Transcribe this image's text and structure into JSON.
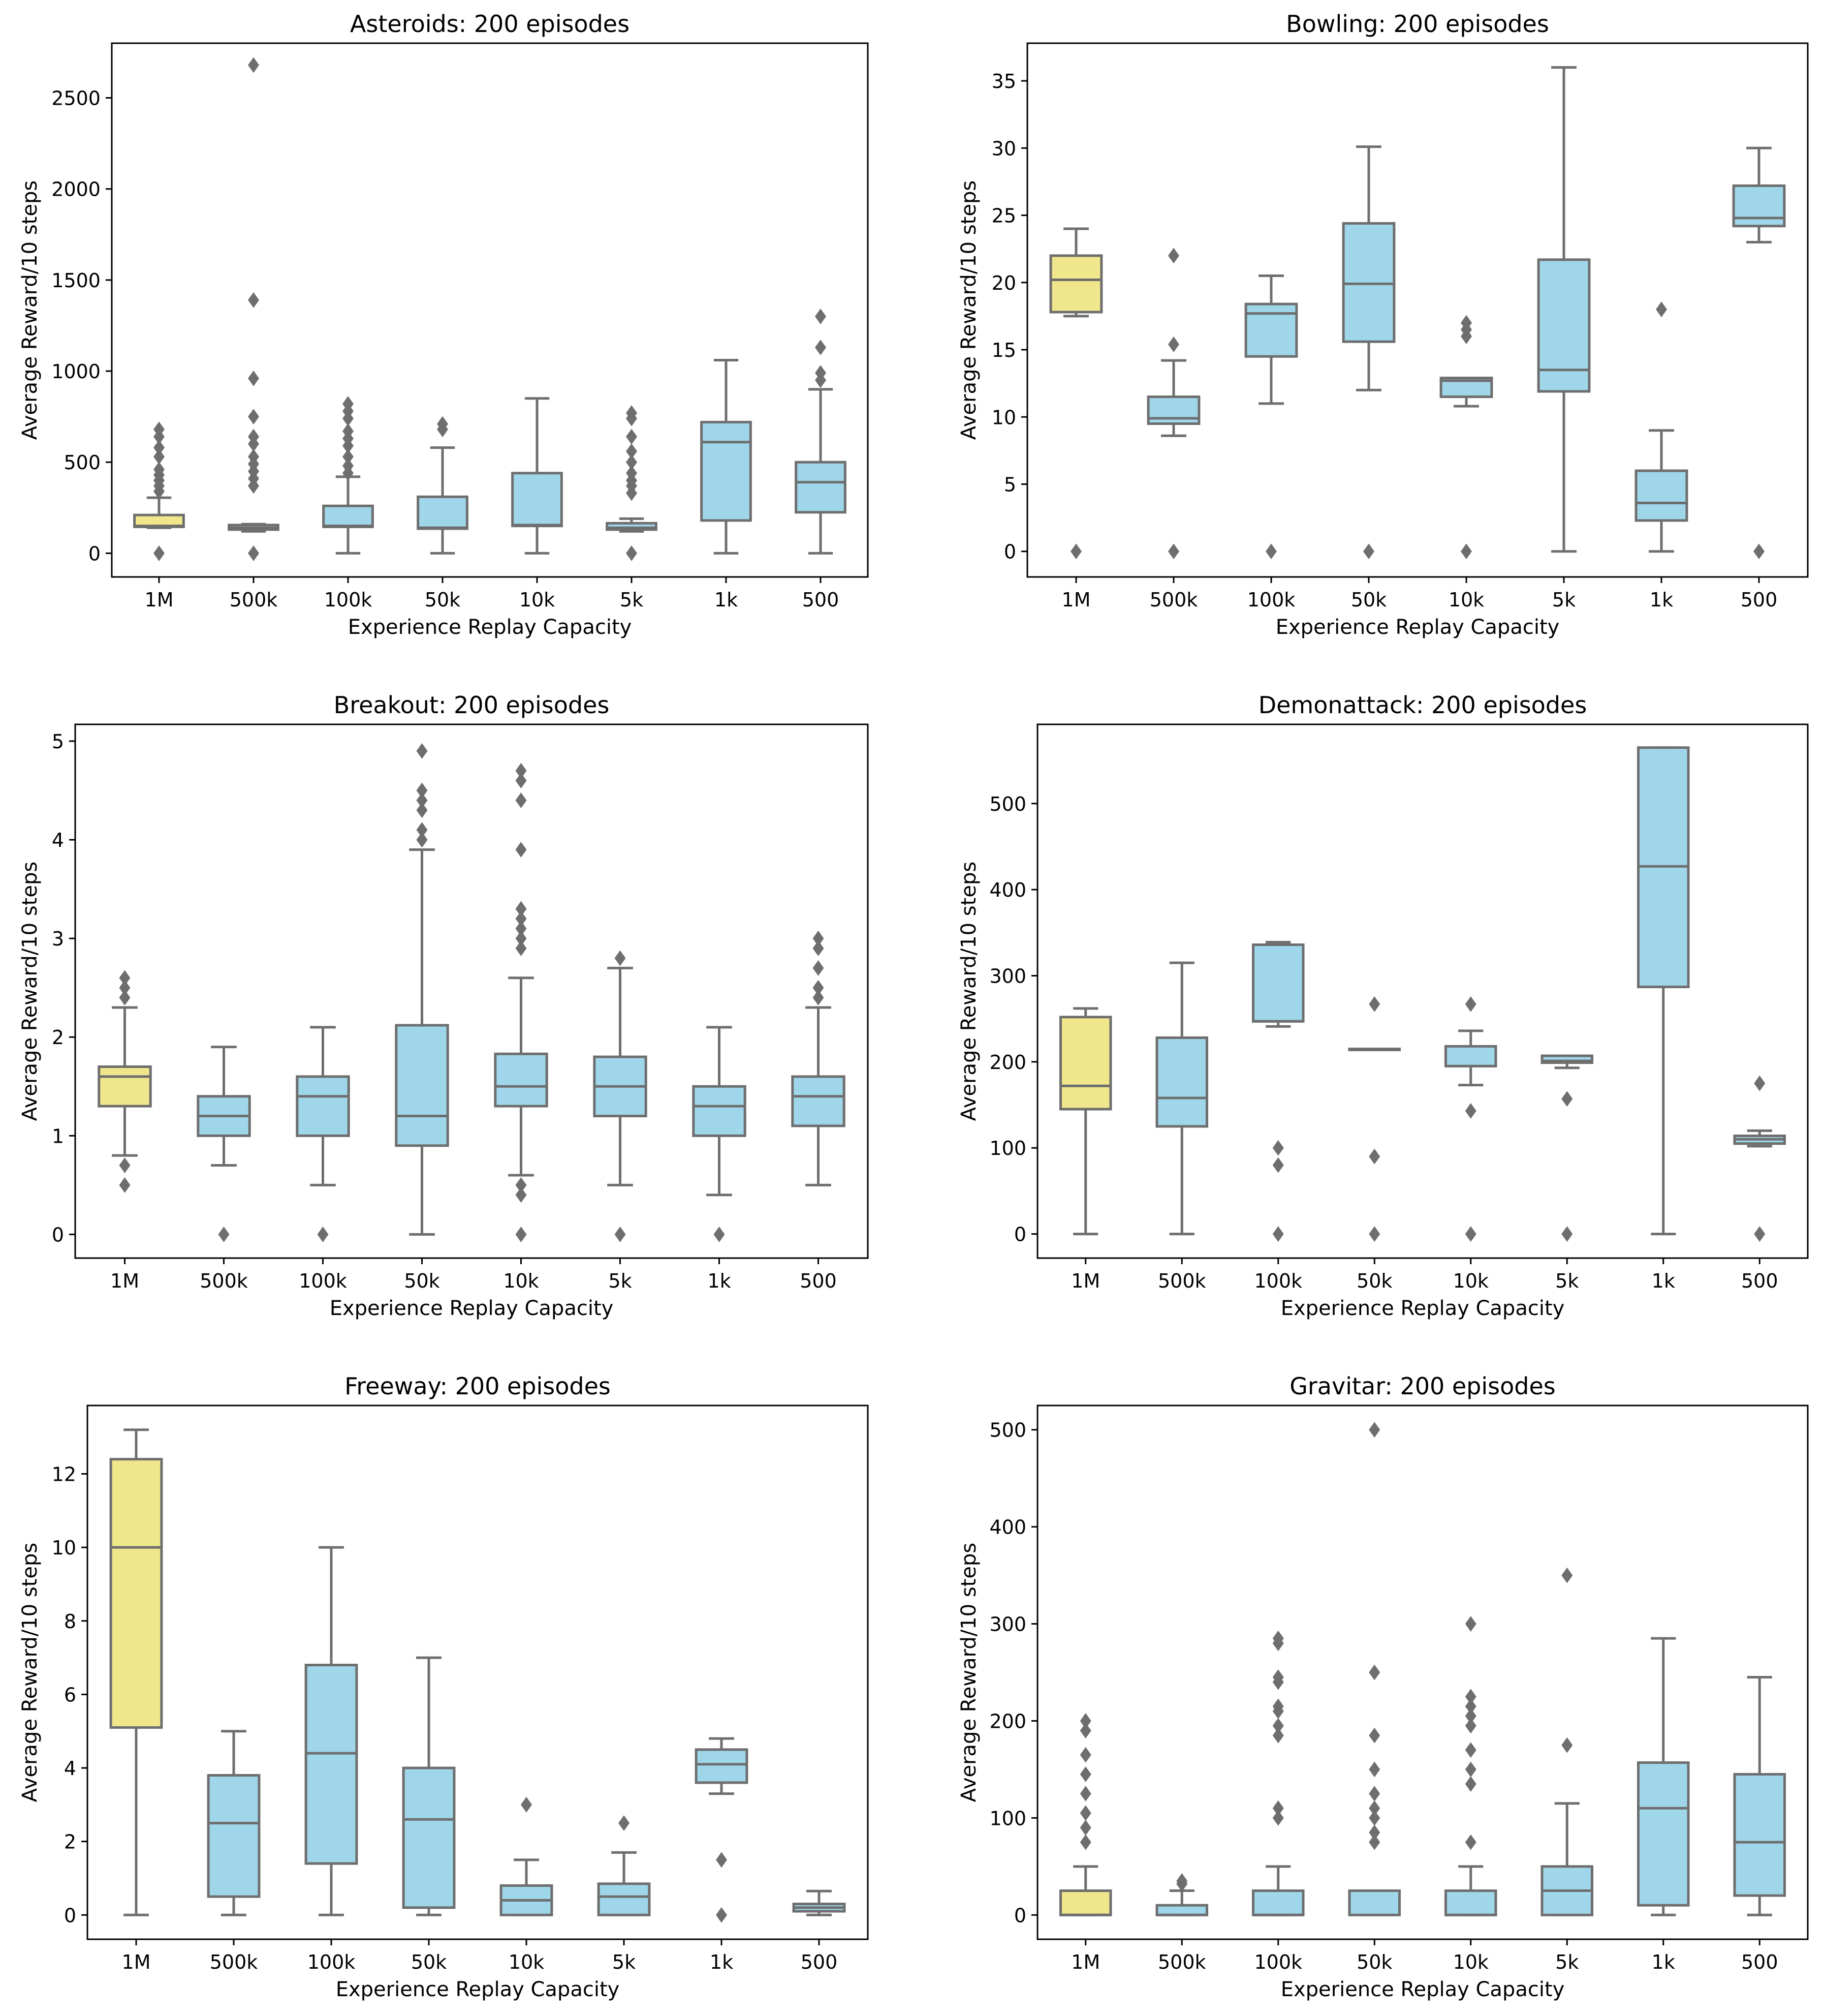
{
  "figure": {
    "colors": {
      "baseline": "#f0e68c",
      "variant": "#9fd6ea",
      "line": "#6e6e6e"
    }
  },
  "chart_data": [
    {
      "type": "box",
      "title": "Asteroids: 200 episodes",
      "xlabel": "Experience Replay Capacity",
      "ylabel": "Average Reward/10 steps",
      "categories": [
        "1M",
        "500k",
        "100k",
        "50k",
        "10k",
        "5k",
        "1k",
        "500"
      ],
      "ylim": [
        -130,
        2800
      ],
      "yticks": [
        0,
        500,
        1000,
        1500,
        2000,
        2500
      ],
      "boxes": [
        {
          "q1": 145,
          "median": 150,
          "q3": 210,
          "whislo": 140,
          "whishi": 305,
          "fliers": [
            0,
            340,
            370,
            400,
            430,
            460,
            530,
            580,
            640,
            680
          ]
        },
        {
          "q1": 130,
          "median": 140,
          "q3": 155,
          "whislo": 120,
          "whishi": 160,
          "fliers": [
            0,
            370,
            410,
            450,
            490,
            530,
            600,
            640,
            750,
            960,
            1390,
            2680
          ]
        },
        {
          "q1": 145,
          "median": 150,
          "q3": 260,
          "whislo": 0,
          "whishi": 420,
          "fliers": [
            440,
            480,
            530,
            590,
            630,
            670,
            740,
            780,
            820
          ]
        },
        {
          "q1": 135,
          "median": 140,
          "q3": 310,
          "whislo": 0,
          "whishi": 580,
          "fliers": [
            680,
            710
          ]
        },
        {
          "q1": 150,
          "median": 155,
          "q3": 440,
          "whislo": 0,
          "whishi": 850,
          "fliers": []
        },
        {
          "q1": 130,
          "median": 140,
          "q3": 165,
          "whislo": 120,
          "whishi": 190,
          "fliers": [
            0,
            330,
            370,
            400,
            440,
            500,
            560,
            640,
            740,
            770
          ]
        },
        {
          "q1": 180,
          "median": 610,
          "q3": 720,
          "whislo": 0,
          "whishi": 1060,
          "fliers": []
        },
        {
          "q1": 225,
          "median": 390,
          "q3": 500,
          "whislo": 0,
          "whishi": 900,
          "fliers": [
            950,
            990,
            1130,
            1300
          ]
        }
      ]
    },
    {
      "type": "box",
      "title": "Bowling: 200 episodes",
      "xlabel": "Experience Replay Capacity",
      "ylabel": "Average Reward/10 steps",
      "categories": [
        "1M",
        "500k",
        "100k",
        "50k",
        "10k",
        "5k",
        "1k",
        "500"
      ],
      "ylim": [
        -1.9,
        37.8
      ],
      "yticks": [
        0,
        5,
        10,
        15,
        20,
        25,
        30,
        35
      ],
      "boxes": [
        {
          "q1": 17.8,
          "median": 20.2,
          "q3": 22,
          "whislo": 17.5,
          "whishi": 24,
          "fliers": [
            0
          ]
        },
        {
          "q1": 9.5,
          "median": 9.9,
          "q3": 11.5,
          "whislo": 8.6,
          "whishi": 14.2,
          "fliers": [
            0,
            15.4,
            22
          ]
        },
        {
          "q1": 14.5,
          "median": 17.7,
          "q3": 18.4,
          "whislo": 11,
          "whishi": 20.5,
          "fliers": [
            0
          ]
        },
        {
          "q1": 15.6,
          "median": 19.9,
          "q3": 24.4,
          "whislo": 12,
          "whishi": 30.1,
          "fliers": [
            0
          ]
        },
        {
          "q1": 11.5,
          "median": 12.7,
          "q3": 12.9,
          "whislo": 10.8,
          "whishi": 12.9,
          "fliers": [
            0,
            16,
            16.5,
            17
          ]
        },
        {
          "q1": 11.9,
          "median": 13.5,
          "q3": 21.7,
          "whislo": 0,
          "whishi": 36,
          "fliers": []
        },
        {
          "q1": 2.3,
          "median": 3.6,
          "q3": 6,
          "whislo": 0,
          "whishi": 9,
          "fliers": [
            18
          ]
        },
        {
          "q1": 24.2,
          "median": 24.8,
          "q3": 27.2,
          "whislo": 23,
          "whishi": 30,
          "fliers": [
            0
          ]
        }
      ]
    },
    {
      "type": "box",
      "title": "Breakout: 200 episodes",
      "xlabel": "Experience Replay Capacity",
      "ylabel": "Average Reward/10 steps",
      "categories": [
        "1M",
        "500k",
        "100k",
        "50k",
        "10k",
        "5k",
        "1k",
        "500"
      ],
      "ylim": [
        -0.24,
        5.17
      ],
      "yticks": [
        0,
        1,
        2,
        3,
        4,
        5
      ],
      "boxes": [
        {
          "q1": 1.3,
          "median": 1.6,
          "q3": 1.7,
          "whislo": 0.8,
          "whishi": 2.3,
          "fliers": [
            0.5,
            0.7,
            2.4,
            2.5,
            2.6
          ]
        },
        {
          "q1": 1.0,
          "median": 1.2,
          "q3": 1.4,
          "whislo": 0.7,
          "whishi": 1.9,
          "fliers": [
            0
          ]
        },
        {
          "q1": 1.0,
          "median": 1.4,
          "q3": 1.6,
          "whislo": 0.5,
          "whishi": 2.1,
          "fliers": [
            0
          ]
        },
        {
          "q1": 0.9,
          "median": 1.2,
          "q3": 2.12,
          "whislo": 0,
          "whishi": 3.9,
          "fliers": [
            4.0,
            4.1,
            4.3,
            4.4,
            4.5,
            4.9
          ]
        },
        {
          "q1": 1.3,
          "median": 1.5,
          "q3": 1.83,
          "whislo": 0.6,
          "whishi": 2.6,
          "fliers": [
            0,
            0.4,
            0.5,
            2.9,
            3.0,
            3.1,
            3.2,
            3.3,
            3.9,
            4.4,
            4.6,
            4.7
          ]
        },
        {
          "q1": 1.2,
          "median": 1.5,
          "q3": 1.8,
          "whislo": 0.5,
          "whishi": 2.7,
          "fliers": [
            0,
            2.8
          ]
        },
        {
          "q1": 1.0,
          "median": 1.3,
          "q3": 1.5,
          "whislo": 0.4,
          "whishi": 2.1,
          "fliers": [
            0
          ]
        },
        {
          "q1": 1.1,
          "median": 1.4,
          "q3": 1.6,
          "whislo": 0.5,
          "whishi": 2.3,
          "fliers": [
            2.4,
            2.5,
            2.7,
            2.9,
            3.0
          ]
        }
      ]
    },
    {
      "type": "box",
      "title": "Demonattack: 200 episodes",
      "xlabel": "Experience Replay Capacity",
      "ylabel": "Average Reward/10 steps",
      "categories": [
        "1M",
        "500k",
        "100k",
        "50k",
        "10k",
        "5k",
        "1k",
        "500"
      ],
      "ylim": [
        -28,
        592
      ],
      "yticks": [
        0,
        100,
        200,
        300,
        400,
        500
      ],
      "boxes": [
        {
          "q1": 145,
          "median": 172,
          "q3": 252,
          "whislo": 0,
          "whishi": 262,
          "fliers": []
        },
        {
          "q1": 125,
          "median": 158,
          "q3": 228,
          "whislo": 0,
          "whishi": 315,
          "fliers": []
        },
        {
          "q1": 247,
          "median": 247,
          "q3": 336,
          "whislo": 241,
          "whishi": 339,
          "fliers": [
            0,
            80,
            100
          ]
        },
        {
          "q1": 215,
          "median": 215,
          "q3": 215,
          "whislo": 215,
          "whishi": 215,
          "fliers": [
            0,
            90,
            267
          ]
        },
        {
          "q1": 195,
          "median": 195,
          "q3": 218,
          "whislo": 173,
          "whishi": 236,
          "fliers": [
            0,
            143,
            267
          ]
        },
        {
          "q1": 199,
          "median": 201,
          "q3": 207,
          "whislo": 193,
          "whishi": 207,
          "fliers": [
            0,
            157
          ]
        },
        {
          "q1": 287,
          "median": 427,
          "q3": 565,
          "whislo": 0,
          "whishi": 565,
          "fliers": []
        },
        {
          "q1": 105,
          "median": 110,
          "q3": 114,
          "whislo": 102,
          "whishi": 120,
          "fliers": [
            0,
            175
          ]
        }
      ]
    },
    {
      "type": "box",
      "title": "Freeway: 200 episodes",
      "xlabel": "Experience Replay Capacity",
      "ylabel": "Average Reward/10 steps",
      "categories": [
        "1M",
        "500k",
        "100k",
        "50k",
        "10k",
        "5k",
        "1k",
        "500"
      ],
      "ylim": [
        -0.66,
        13.86
      ],
      "yticks": [
        0,
        2,
        4,
        6,
        8,
        10,
        12
      ],
      "boxes": [
        {
          "q1": 5.1,
          "median": 10,
          "q3": 12.4,
          "whislo": 0,
          "whishi": 13.2,
          "fliers": []
        },
        {
          "q1": 0.5,
          "median": 2.5,
          "q3": 3.8,
          "whislo": 0,
          "whishi": 5,
          "fliers": []
        },
        {
          "q1": 1.4,
          "median": 4.4,
          "q3": 6.8,
          "whislo": 0,
          "whishi": 10,
          "fliers": []
        },
        {
          "q1": 0.2,
          "median": 2.6,
          "q3": 4,
          "whislo": 0,
          "whishi": 7,
          "fliers": []
        },
        {
          "q1": 0,
          "median": 0.4,
          "q3": 0.8,
          "whislo": 0,
          "whishi": 1.5,
          "fliers": [
            3
          ]
        },
        {
          "q1": 0,
          "median": 0.5,
          "q3": 0.85,
          "whislo": 0,
          "whishi": 1.7,
          "fliers": [
            2.5
          ]
        },
        {
          "q1": 3.6,
          "median": 4.1,
          "q3": 4.5,
          "whislo": 3.3,
          "whishi": 4.8,
          "fliers": [
            0,
            1.5
          ]
        },
        {
          "q1": 0.1,
          "median": 0.2,
          "q3": 0.3,
          "whislo": 0,
          "whishi": 0.65,
          "fliers": []
        }
      ]
    },
    {
      "type": "box",
      "title": "Gravitar: 200 episodes",
      "xlabel": "Experience Replay Capacity",
      "ylabel": "Average Reward/10 steps",
      "categories": [
        "1M",
        "500k",
        "100k",
        "50k",
        "10k",
        "5k",
        "1k",
        "500"
      ],
      "ylim": [
        -25,
        525
      ],
      "yticks": [
        0,
        100,
        200,
        300,
        400,
        500
      ],
      "boxes": [
        {
          "q1": 0,
          "median": 0,
          "q3": 25,
          "whislo": 0,
          "whishi": 50,
          "fliers": [
            75,
            90,
            105,
            125,
            145,
            165,
            190,
            200
          ]
        },
        {
          "q1": 0,
          "median": 0,
          "q3": 10,
          "whislo": 0,
          "whishi": 25,
          "fliers": [
            32,
            35
          ]
        },
        {
          "q1": 0,
          "median": 0,
          "q3": 25,
          "whislo": 0,
          "whishi": 50,
          "fliers": [
            100,
            110,
            185,
            195,
            210,
            215,
            240,
            245,
            280,
            285
          ]
        },
        {
          "q1": 0,
          "median": 25,
          "q3": 25,
          "whislo": 0,
          "whishi": 25,
          "fliers": [
            75,
            85,
            100,
            110,
            125,
            150,
            185,
            250,
            500
          ]
        },
        {
          "q1": 0,
          "median": 0,
          "q3": 25,
          "whislo": 0,
          "whishi": 50,
          "fliers": [
            75,
            135,
            150,
            170,
            195,
            205,
            215,
            225,
            300
          ]
        },
        {
          "q1": 0,
          "median": 25,
          "q3": 50,
          "whislo": 0,
          "whishi": 115,
          "fliers": [
            175,
            350
          ]
        },
        {
          "q1": 10,
          "median": 110,
          "q3": 157,
          "whislo": 0,
          "whishi": 285,
          "fliers": []
        },
        {
          "q1": 20,
          "median": 75,
          "q3": 145,
          "whislo": 0,
          "whishi": 245,
          "fliers": []
        }
      ]
    }
  ]
}
